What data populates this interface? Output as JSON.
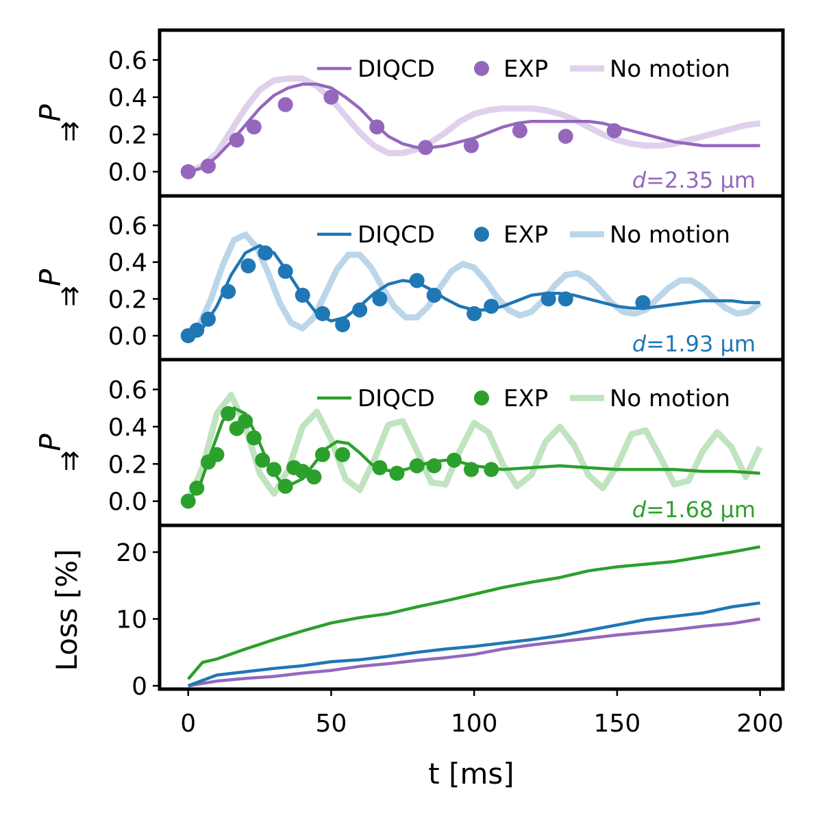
{
  "figure": {
    "xlabel": "t [ms]"
  },
  "chart_data": [
    {
      "type": "line",
      "panel": "top",
      "ylabel_main": "P",
      "ylabel_sub": "⇈",
      "annotation_italic": "d",
      "annotation_rest": "=2.35 μm",
      "color": "#9467bd",
      "xlim": [
        -10,
        208
      ],
      "ylim": [
        -0.13,
        0.76
      ],
      "yticks": [
        "0.6",
        "0.4",
        "0.2",
        "0.0"
      ],
      "ytick_values": [
        0.6,
        0.4,
        0.2,
        0.0
      ],
      "legend": [
        "DIQCD",
        "EXP",
        "No motion"
      ],
      "series": [
        {
          "name": "DIQCD",
          "style": "line",
          "x": [
            0,
            5,
            10,
            15,
            20,
            25,
            30,
            35,
            40,
            45,
            50,
            55,
            60,
            65,
            70,
            75,
            80,
            85,
            90,
            95,
            100,
            105,
            110,
            115,
            120,
            125,
            130,
            135,
            140,
            145,
            150,
            155,
            160,
            165,
            170,
            175,
            180,
            185,
            190,
            195,
            200
          ],
          "y": [
            0.0,
            0.02,
            0.08,
            0.16,
            0.25,
            0.34,
            0.41,
            0.45,
            0.47,
            0.47,
            0.45,
            0.4,
            0.34,
            0.26,
            0.19,
            0.15,
            0.13,
            0.13,
            0.14,
            0.16,
            0.18,
            0.21,
            0.24,
            0.26,
            0.27,
            0.27,
            0.27,
            0.27,
            0.27,
            0.26,
            0.24,
            0.22,
            0.2,
            0.18,
            0.16,
            0.15,
            0.14,
            0.14,
            0.14,
            0.14,
            0.14
          ]
        },
        {
          "name": "EXP",
          "style": "points",
          "x": [
            0,
            7,
            17,
            23,
            34,
            50,
            66,
            83,
            99,
            116,
            132,
            149
          ],
          "y": [
            0.0,
            0.03,
            0.17,
            0.24,
            0.36,
            0.4,
            0.24,
            0.13,
            0.14,
            0.22,
            0.19,
            0.22
          ]
        },
        {
          "name": "No motion",
          "style": "line-light",
          "x": [
            0,
            5,
            10,
            15,
            20,
            25,
            30,
            35,
            40,
            45,
            50,
            55,
            60,
            65,
            70,
            75,
            80,
            85,
            90,
            95,
            100,
            105,
            110,
            115,
            120,
            125,
            130,
            135,
            140,
            145,
            150,
            155,
            160,
            165,
            170,
            175,
            180,
            185,
            190,
            195,
            200
          ],
          "y": [
            0.0,
            0.03,
            0.1,
            0.22,
            0.34,
            0.44,
            0.49,
            0.5,
            0.5,
            0.46,
            0.39,
            0.3,
            0.21,
            0.14,
            0.1,
            0.1,
            0.12,
            0.16,
            0.21,
            0.27,
            0.31,
            0.33,
            0.34,
            0.34,
            0.34,
            0.33,
            0.31,
            0.28,
            0.24,
            0.2,
            0.17,
            0.15,
            0.14,
            0.14,
            0.15,
            0.17,
            0.19,
            0.21,
            0.23,
            0.25,
            0.26
          ]
        }
      ]
    },
    {
      "type": "line",
      "panel": "middle",
      "ylabel_main": "P",
      "ylabel_sub": "⇈",
      "annotation_italic": "d",
      "annotation_rest": "=1.93 μm",
      "color": "#1f77b4",
      "xlim": [
        -10,
        208
      ],
      "ylim": [
        -0.13,
        0.76
      ],
      "yticks": [
        "0.6",
        "0.4",
        "0.2",
        "0.0"
      ],
      "ytick_values": [
        0.6,
        0.4,
        0.2,
        0.0
      ],
      "legend": [
        "DIQCD",
        "EXP",
        "No motion"
      ],
      "series": [
        {
          "name": "DIQCD",
          "style": "line",
          "x": [
            0,
            5,
            10,
            15,
            20,
            25,
            30,
            35,
            40,
            45,
            50,
            55,
            60,
            65,
            70,
            75,
            80,
            85,
            90,
            95,
            100,
            105,
            110,
            115,
            120,
            125,
            130,
            135,
            140,
            145,
            150,
            155,
            160,
            165,
            170,
            175,
            180,
            185,
            190,
            195,
            200
          ],
          "y": [
            0.0,
            0.04,
            0.16,
            0.33,
            0.45,
            0.49,
            0.45,
            0.34,
            0.22,
            0.12,
            0.08,
            0.1,
            0.16,
            0.23,
            0.28,
            0.3,
            0.29,
            0.25,
            0.2,
            0.16,
            0.14,
            0.14,
            0.16,
            0.19,
            0.22,
            0.23,
            0.23,
            0.22,
            0.2,
            0.18,
            0.16,
            0.15,
            0.15,
            0.16,
            0.17,
            0.18,
            0.19,
            0.19,
            0.19,
            0.18,
            0.18
          ]
        },
        {
          "name": "EXP",
          "style": "points",
          "x": [
            0,
            3,
            7,
            14,
            21,
            27,
            34,
            40,
            47,
            54,
            60,
            67,
            80,
            86,
            100,
            106,
            126,
            132,
            159
          ],
          "y": [
            0.0,
            0.03,
            0.09,
            0.24,
            0.38,
            0.45,
            0.35,
            0.22,
            0.12,
            0.06,
            0.14,
            0.2,
            0.3,
            0.22,
            0.12,
            0.16,
            0.2,
            0.2,
            0.18
          ]
        },
        {
          "name": "No motion",
          "style": "line-light",
          "x": [
            0,
            4,
            8,
            12,
            16,
            20,
            24,
            28,
            32,
            36,
            40,
            44,
            48,
            52,
            56,
            60,
            64,
            68,
            72,
            76,
            80,
            84,
            88,
            92,
            96,
            100,
            104,
            108,
            112,
            116,
            120,
            124,
            128,
            132,
            136,
            140,
            144,
            148,
            152,
            156,
            160,
            164,
            168,
            172,
            176,
            180,
            184,
            188,
            192,
            196,
            200
          ],
          "y": [
            0.0,
            0.06,
            0.2,
            0.38,
            0.52,
            0.55,
            0.48,
            0.34,
            0.18,
            0.07,
            0.04,
            0.1,
            0.23,
            0.36,
            0.44,
            0.44,
            0.37,
            0.26,
            0.16,
            0.1,
            0.1,
            0.16,
            0.26,
            0.35,
            0.39,
            0.37,
            0.3,
            0.21,
            0.14,
            0.11,
            0.13,
            0.19,
            0.27,
            0.33,
            0.34,
            0.31,
            0.25,
            0.18,
            0.13,
            0.12,
            0.14,
            0.2,
            0.26,
            0.3,
            0.3,
            0.26,
            0.2,
            0.15,
            0.12,
            0.13,
            0.18
          ]
        }
      ]
    },
    {
      "type": "line",
      "panel": "lower",
      "ylabel_main": "P",
      "ylabel_sub": "⇈",
      "annotation_italic": "d",
      "annotation_rest": "=1.68 μm",
      "color": "#2ca02c",
      "xlim": [
        -10,
        208
      ],
      "ylim": [
        -0.13,
        0.76
      ],
      "yticks": [
        "0.6",
        "0.4",
        "0.2",
        "0.0"
      ],
      "ytick_values": [
        0.6,
        0.4,
        0.2,
        0.0
      ],
      "legend": [
        "DIQCD",
        "EXP",
        "No motion"
      ],
      "series": [
        {
          "name": "DIQCD",
          "style": "line",
          "x": [
            0,
            4,
            8,
            12,
            16,
            20,
            24,
            28,
            32,
            36,
            40,
            44,
            48,
            52,
            56,
            60,
            64,
            68,
            72,
            76,
            80,
            85,
            90,
            95,
            100,
            110,
            120,
            130,
            140,
            150,
            160,
            170,
            180,
            190,
            200
          ],
          "y": [
            0.0,
            0.08,
            0.26,
            0.43,
            0.5,
            0.47,
            0.35,
            0.2,
            0.11,
            0.09,
            0.12,
            0.2,
            0.28,
            0.32,
            0.31,
            0.26,
            0.2,
            0.17,
            0.16,
            0.17,
            0.19,
            0.21,
            0.22,
            0.21,
            0.19,
            0.17,
            0.18,
            0.19,
            0.18,
            0.17,
            0.17,
            0.17,
            0.16,
            0.16,
            0.15
          ]
        },
        {
          "name": "EXP",
          "style": "points",
          "x": [
            0,
            3,
            7,
            10,
            14,
            17,
            20,
            23,
            26,
            30,
            34,
            37,
            40,
            44,
            47,
            54,
            67,
            73,
            80,
            86,
            93,
            99,
            106
          ],
          "y": [
            0.0,
            0.07,
            0.21,
            0.25,
            0.47,
            0.39,
            0.43,
            0.34,
            0.22,
            0.17,
            0.08,
            0.18,
            0.16,
            0.13,
            0.25,
            0.25,
            0.18,
            0.15,
            0.19,
            0.19,
            0.22,
            0.17,
            0.17
          ]
        },
        {
          "name": "No motion",
          "style": "line-light",
          "x": [
            0,
            5,
            10,
            15,
            20,
            25,
            30,
            35,
            40,
            45,
            50,
            55,
            60,
            65,
            70,
            75,
            80,
            85,
            90,
            95,
            100,
            105,
            110,
            115,
            120,
            125,
            130,
            135,
            140,
            145,
            150,
            155,
            160,
            165,
            170,
            175,
            180,
            185,
            190,
            195,
            200
          ],
          "y": [
            0.0,
            0.18,
            0.47,
            0.57,
            0.4,
            0.15,
            0.04,
            0.17,
            0.4,
            0.48,
            0.33,
            0.12,
            0.06,
            0.22,
            0.41,
            0.43,
            0.27,
            0.1,
            0.09,
            0.27,
            0.42,
            0.37,
            0.2,
            0.08,
            0.14,
            0.32,
            0.4,
            0.3,
            0.14,
            0.07,
            0.19,
            0.36,
            0.38,
            0.24,
            0.09,
            0.11,
            0.27,
            0.37,
            0.29,
            0.13,
            0.29
          ]
        }
      ]
    },
    {
      "type": "line",
      "panel": "bottom",
      "ylabel": "Loss [%]",
      "xlabel": "t [ms]",
      "xlim": [
        -10,
        208
      ],
      "ylim": [
        -0.5,
        24
      ],
      "yticks": [
        "20",
        "10",
        "0"
      ],
      "ytick_values": [
        20,
        10,
        0
      ],
      "xticks": [
        "0",
        "50",
        "100",
        "150",
        "200"
      ],
      "xtick_values": [
        0,
        50,
        100,
        150,
        200
      ],
      "series": [
        {
          "name": "d=2.35 μm loss",
          "color": "#9467bd",
          "x": [
            0,
            10,
            20,
            30,
            40,
            50,
            60,
            70,
            80,
            90,
            100,
            110,
            120,
            130,
            140,
            150,
            160,
            170,
            180,
            190,
            200
          ],
          "y": [
            0,
            0.7,
            1.1,
            1.4,
            1.9,
            2.3,
            2.9,
            3.3,
            3.8,
            4.2,
            4.7,
            5.5,
            6.1,
            6.6,
            7.1,
            7.6,
            8.0,
            8.4,
            8.9,
            9.3,
            10.0
          ]
        },
        {
          "name": "d=1.93 μm loss",
          "color": "#1f77b4",
          "x": [
            0,
            10,
            20,
            30,
            40,
            50,
            60,
            70,
            80,
            90,
            100,
            110,
            120,
            130,
            140,
            150,
            160,
            170,
            180,
            190,
            200
          ],
          "y": [
            0,
            1.6,
            2.1,
            2.6,
            3.0,
            3.6,
            3.9,
            4.4,
            5.0,
            5.5,
            5.9,
            6.4,
            6.9,
            7.5,
            8.3,
            9.1,
            9.9,
            10.4,
            10.9,
            11.8,
            12.4
          ]
        },
        {
          "name": "d=1.68 μm loss",
          "color": "#2ca02c",
          "x": [
            0,
            5,
            10,
            20,
            30,
            40,
            50,
            60,
            70,
            80,
            90,
            100,
            110,
            120,
            130,
            140,
            150,
            160,
            170,
            180,
            190,
            200
          ],
          "y": [
            1,
            3.5,
            4.0,
            5.5,
            6.9,
            8.2,
            9.4,
            10.2,
            10.8,
            11.8,
            12.7,
            13.7,
            14.7,
            15.5,
            16.2,
            17.2,
            17.8,
            18.2,
            18.6,
            19.3,
            20.0,
            20.8
          ]
        }
      ]
    }
  ]
}
